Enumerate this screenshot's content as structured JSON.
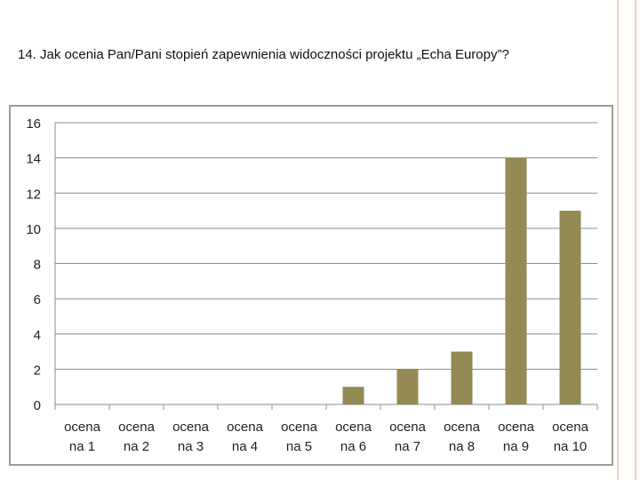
{
  "slide": {
    "question": "14. Jak ocenia Pan/Pani stopień zapewnienia widoczności projektu „Echa Europy”?"
  },
  "colors": {
    "bar": "#948a54",
    "gridline": "#8c8c8c",
    "frame": "#9b9b9b",
    "decor": "#f3cfc2"
  },
  "chart_data": {
    "type": "bar",
    "title": "",
    "xlabel": "",
    "ylabel": "",
    "categories": [
      [
        "ocena",
        "na 1"
      ],
      [
        "ocena",
        "na 2"
      ],
      [
        "ocena",
        "na 3"
      ],
      [
        "ocena",
        "na 4"
      ],
      [
        "ocena",
        "na 5"
      ],
      [
        "ocena",
        "na 6"
      ],
      [
        "ocena",
        "na 7"
      ],
      [
        "ocena",
        "na 8"
      ],
      [
        "ocena",
        "na 9"
      ],
      [
        "ocena",
        "na 10"
      ]
    ],
    "values": [
      0,
      0,
      0,
      0,
      0,
      1,
      2,
      3,
      14,
      11
    ],
    "ylim": [
      0,
      16
    ],
    "yticks": [
      "0",
      "2",
      "4",
      "6",
      "8",
      "10",
      "12",
      "14",
      "16"
    ],
    "grid": true,
    "legend": "none"
  }
}
